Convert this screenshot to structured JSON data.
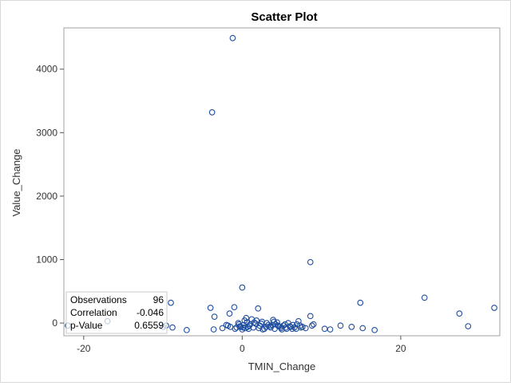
{
  "chart_data": {
    "type": "scatter",
    "title": "Scatter Plot",
    "xlabel": "TMIN_Change",
    "ylabel": "Value_Change",
    "xlim": [
      -22.5,
      32.5
    ],
    "ylim": [
      -200,
      4650
    ],
    "xticks": [
      -20,
      0,
      20
    ],
    "yticks": [
      0,
      1000,
      2000,
      3000,
      4000
    ],
    "grid": false,
    "marker_color": "#1f4e9e",
    "stats": [
      {
        "label": "Observations",
        "value": "96"
      },
      {
        "label": "Correlation",
        "value": "-0.046"
      },
      {
        "label": "p-Value",
        "value": "0.6559"
      }
    ],
    "points": [
      {
        "x": -1.2,
        "y": 4490
      },
      {
        "x": -3.8,
        "y": 3320
      },
      {
        "x": 8.6,
        "y": 960
      },
      {
        "x": 0.0,
        "y": 560
      },
      {
        "x": -9.0,
        "y": 320
      },
      {
        "x": -4.0,
        "y": 240
      },
      {
        "x": -3.5,
        "y": 100
      },
      {
        "x": -1.0,
        "y": 250
      },
      {
        "x": -1.6,
        "y": 150
      },
      {
        "x": 2.0,
        "y": 230
      },
      {
        "x": 14.9,
        "y": 320
      },
      {
        "x": 23.0,
        "y": 400
      },
      {
        "x": 27.4,
        "y": 150
      },
      {
        "x": 31.8,
        "y": 240
      },
      {
        "x": 8.6,
        "y": 110
      },
      {
        "x": -17.0,
        "y": 30
      },
      {
        "x": -22.0,
        "y": -40
      },
      {
        "x": -10.0,
        "y": -60
      },
      {
        "x": -9.6,
        "y": -40
      },
      {
        "x": -8.8,
        "y": -70
      },
      {
        "x": -7.0,
        "y": -110
      },
      {
        "x": -3.6,
        "y": -100
      },
      {
        "x": -2.5,
        "y": -80
      },
      {
        "x": -2.0,
        "y": -30
      },
      {
        "x": -1.5,
        "y": -60
      },
      {
        "x": -0.9,
        "y": -90
      },
      {
        "x": -0.5,
        "y": 0
      },
      {
        "x": -0.3,
        "y": -50
      },
      {
        "x": 0.0,
        "y": -100
      },
      {
        "x": 0.2,
        "y": -30
      },
      {
        "x": 0.3,
        "y": 40
      },
      {
        "x": 0.5,
        "y": 80
      },
      {
        "x": 0.7,
        "y": -60
      },
      {
        "x": 1.0,
        "y": -20
      },
      {
        "x": 1.2,
        "y": 60
      },
      {
        "x": 1.5,
        "y": 10
      },
      {
        "x": 1.8,
        "y": 40
      },
      {
        "x": 2.2,
        "y": -40
      },
      {
        "x": 2.5,
        "y": 20
      },
      {
        "x": 2.8,
        "y": -90
      },
      {
        "x": 3.0,
        "y": -60
      },
      {
        "x": 3.3,
        "y": -30
      },
      {
        "x": 3.6,
        "y": -70
      },
      {
        "x": 3.9,
        "y": 50
      },
      {
        "x": 4.2,
        "y": -20
      },
      {
        "x": 4.4,
        "y": 10
      },
      {
        "x": 4.6,
        "y": -50
      },
      {
        "x": 4.9,
        "y": -80
      },
      {
        "x": 5.2,
        "y": -40
      },
      {
        "x": 5.5,
        "y": -70
      },
      {
        "x": 5.8,
        "y": 0
      },
      {
        "x": 6.1,
        "y": -60
      },
      {
        "x": 6.4,
        "y": -30
      },
      {
        "x": 6.8,
        "y": -90
      },
      {
        "x": 7.1,
        "y": 30
      },
      {
        "x": 7.4,
        "y": -70
      },
      {
        "x": 8.0,
        "y": -80
      },
      {
        "x": 8.8,
        "y": -40
      },
      {
        "x": 9.0,
        "y": -20
      },
      {
        "x": 10.4,
        "y": -90
      },
      {
        "x": 11.1,
        "y": -100
      },
      {
        "x": 12.4,
        "y": -40
      },
      {
        "x": 13.8,
        "y": -60
      },
      {
        "x": 15.2,
        "y": -80
      },
      {
        "x": 16.7,
        "y": -110
      },
      {
        "x": 28.5,
        "y": -50
      },
      {
        "x": -0.2,
        "y": -60
      },
      {
        "x": 0.4,
        "y": -80
      },
      {
        "x": 0.9,
        "y": -40
      },
      {
        "x": 1.4,
        "y": -70
      },
      {
        "x": 2.6,
        "y": -100
      },
      {
        "x": 3.8,
        "y": -30
      },
      {
        "x": 4.1,
        "y": -90
      },
      {
        "x": 4.8,
        "y": -60
      },
      {
        "x": 5.0,
        "y": -100
      },
      {
        "x": 6.0,
        "y": -50
      },
      {
        "x": 6.6,
        "y": -70
      },
      {
        "x": 7.3,
        "y": -40
      },
      {
        "x": -0.4,
        "y": -20
      },
      {
        "x": 0.1,
        "y": -70
      },
      {
        "x": 0.6,
        "y": 10
      },
      {
        "x": 1.7,
        "y": -10
      },
      {
        "x": 3.1,
        "y": 0
      },
      {
        "x": 3.5,
        "y": -50
      },
      {
        "x": 4.0,
        "y": 20
      },
      {
        "x": 5.4,
        "y": -20
      },
      {
        "x": 6.3,
        "y": -90
      },
      {
        "x": 7.6,
        "y": -60
      },
      {
        "x": -1.8,
        "y": -40
      },
      {
        "x": -0.7,
        "y": -70
      },
      {
        "x": 0.8,
        "y": -90
      },
      {
        "x": 2.1,
        "y": -80
      },
      {
        "x": 2.4,
        "y": -10
      },
      {
        "x": 4.5,
        "y": -40
      },
      {
        "x": 5.6,
        "y": -90
      },
      {
        "x": 6.9,
        "y": -20
      }
    ]
  }
}
